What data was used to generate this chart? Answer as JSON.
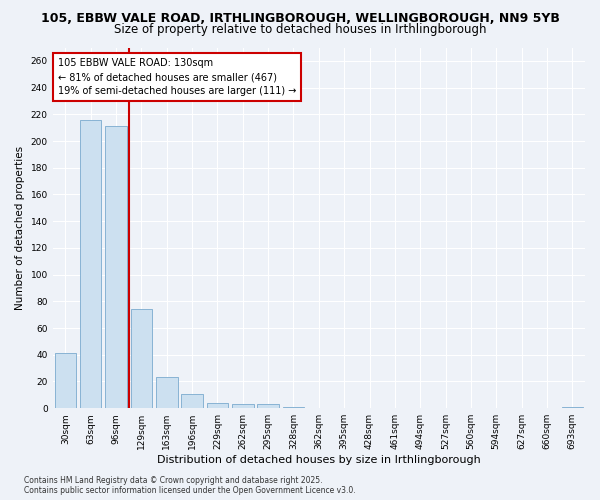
{
  "title_line1": "105, EBBW VALE ROAD, IRTHLINGBOROUGH, WELLINGBOROUGH, NN9 5YB",
  "title_line2": "Size of property relative to detached houses in Irthlingborough",
  "xlabel": "Distribution of detached houses by size in Irthlingborough",
  "ylabel": "Number of detached properties",
  "categories": [
    "30sqm",
    "63sqm",
    "96sqm",
    "129sqm",
    "163sqm",
    "196sqm",
    "229sqm",
    "262sqm",
    "295sqm",
    "328sqm",
    "362sqm",
    "395sqm",
    "428sqm",
    "461sqm",
    "494sqm",
    "527sqm",
    "560sqm",
    "594sqm",
    "627sqm",
    "660sqm",
    "693sqm"
  ],
  "values": [
    41,
    216,
    211,
    74,
    23,
    11,
    4,
    3,
    3,
    1,
    0,
    0,
    0,
    0,
    0,
    0,
    0,
    0,
    0,
    0,
    1
  ],
  "bar_color": "#cce0f0",
  "bar_edge_color": "#7aaace",
  "vline_color": "#cc0000",
  "vline_position": 3,
  "annotation_text_line1": "105 EBBW VALE ROAD: 130sqm",
  "annotation_text_line2": "← 81% of detached houses are smaller (467)",
  "annotation_text_line3": "19% of semi-detached houses are larger (111) →",
  "annotation_box_color": "#ffffff",
  "annotation_box_edge": "#cc0000",
  "ylim": [
    0,
    270
  ],
  "yticks": [
    0,
    20,
    40,
    60,
    80,
    100,
    120,
    140,
    160,
    180,
    200,
    220,
    240,
    260
  ],
  "footer_line1": "Contains HM Land Registry data © Crown copyright and database right 2025.",
  "footer_line2": "Contains public sector information licensed under the Open Government Licence v3.0.",
  "bg_color": "#eef2f8",
  "grid_color": "#ffffff",
  "title_fontsize": 9,
  "subtitle_fontsize": 8.5,
  "tick_fontsize": 6.5,
  "ylabel_fontsize": 7.5,
  "xlabel_fontsize": 8,
  "annot_fontsize": 7,
  "footer_fontsize": 5.5
}
